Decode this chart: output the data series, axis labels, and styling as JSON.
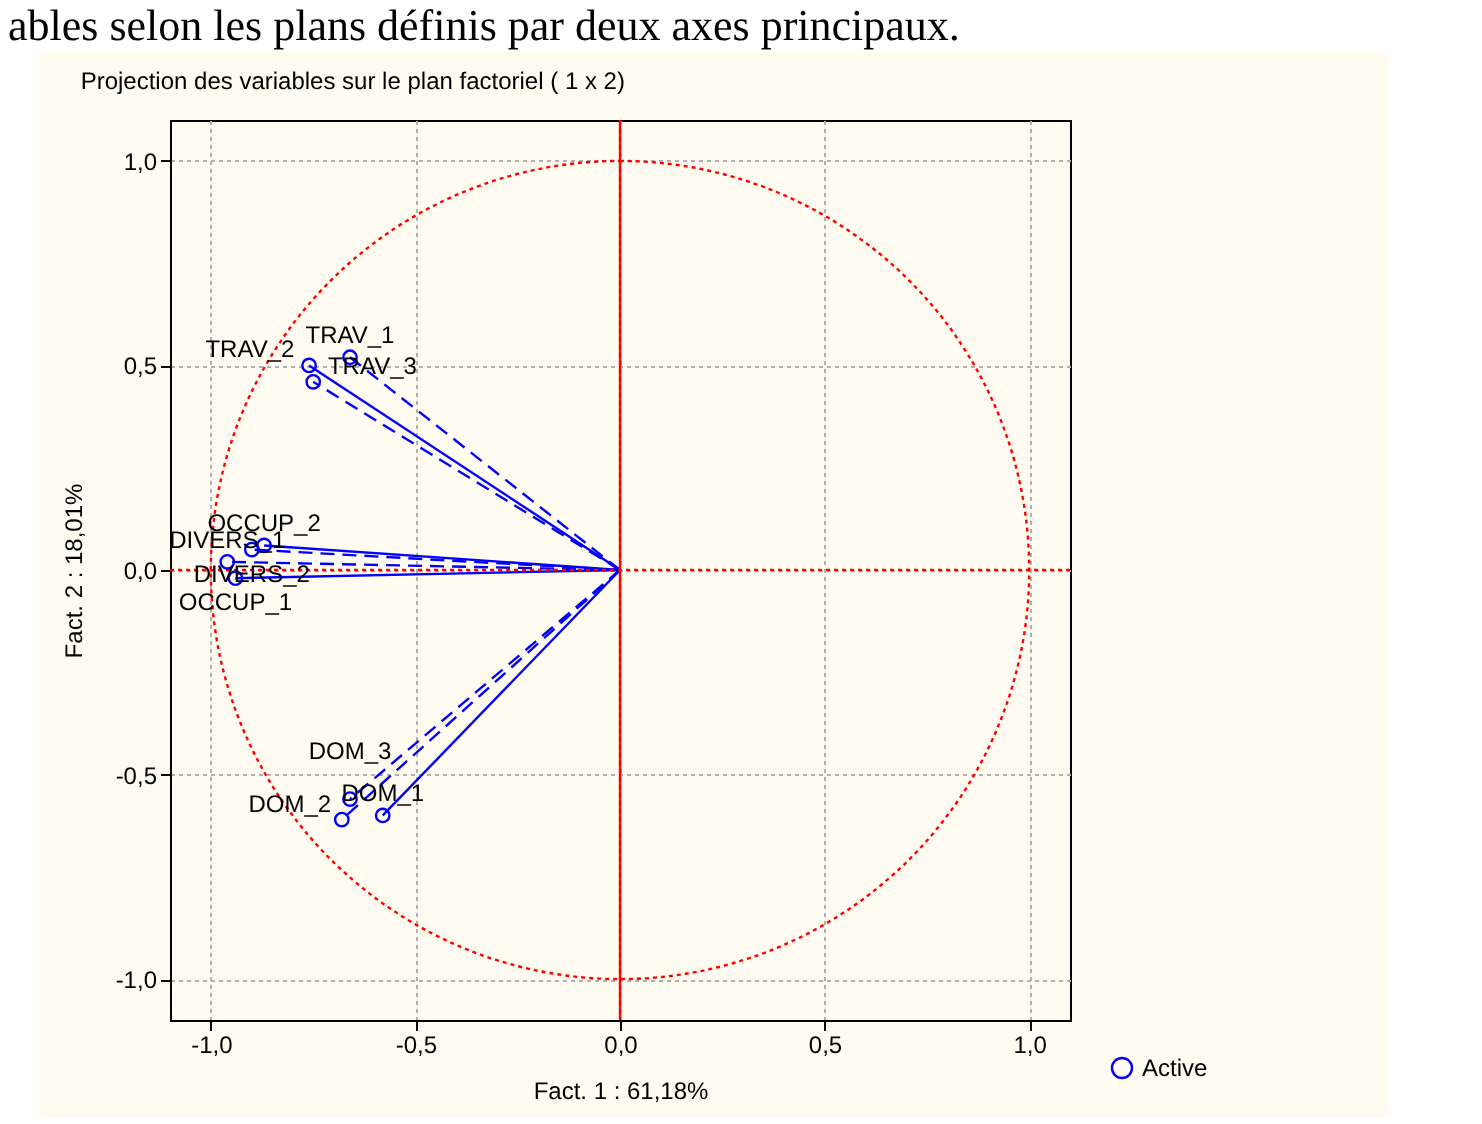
{
  "chart_data": {
    "type": "scatter",
    "title": "Projection des variables sur le plan factoriel (  1 x  2)",
    "xlabel": "Fact. 1  : 61,18%",
    "ylabel": "Fact. 2  : 18,01%",
    "xlim": [
      -1.1,
      1.1
    ],
    "ylim": [
      -1.1,
      1.1
    ],
    "xticks": [
      {
        "value": -1,
        "label": "-1,0"
      },
      {
        "value": -0.5,
        "label": "-0,5"
      },
      {
        "value": 0,
        "label": "0,0"
      },
      {
        "value": 0.5,
        "label": "0,5"
      },
      {
        "value": 1,
        "label": "1,0"
      }
    ],
    "yticks": [
      {
        "value": -1,
        "label": "-1,0"
      },
      {
        "value": -0.5,
        "label": "-0,5"
      },
      {
        "value": 0,
        "label": "0,0"
      },
      {
        "value": 0.5,
        "label": "0,5"
      },
      {
        "value": 1,
        "label": "1,0"
      }
    ],
    "grid": true,
    "legend": "bottom right",
    "ref_lines": [
      {
        "axis": "x",
        "value": 0,
        "color": "#ff0000",
        "line_style": "solid"
      },
      {
        "axis": "y",
        "value": 0,
        "color": "#ff0000",
        "line_style": "dotted"
      }
    ],
    "series": [
      {
        "type": "line",
        "color": "#0000ff",
        "line_style": "dashed",
        "x": [
          0,
          -0.66
        ],
        "values": [
          0,
          0.52
        ]
      },
      {
        "type": "line",
        "color": "#0000ff",
        "line_style": "solid",
        "x": [
          0,
          -0.76
        ],
        "values": [
          0,
          0.5
        ]
      },
      {
        "type": "line",
        "color": "#0000ff",
        "line_style": "dashed",
        "x": [
          0,
          -0.75
        ],
        "values": [
          0,
          0.46
        ]
      },
      {
        "type": "line",
        "color": "#0000ff",
        "line_style": "solid",
        "x": [
          0,
          -0.87
        ],
        "values": [
          0,
          0.06
        ]
      },
      {
        "type": "line",
        "color": "#0000ff",
        "line_style": "dashed",
        "x": [
          0,
          -0.9
        ],
        "values": [
          0,
          0.05
        ]
      },
      {
        "type": "line",
        "color": "#0000ff",
        "line_style": "dashed",
        "x": [
          0,
          -0.96
        ],
        "values": [
          0,
          0.02
        ]
      },
      {
        "type": "line",
        "color": "#0000ff",
        "line_style": "solid",
        "x": [
          0,
          -0.94
        ],
        "values": [
          0,
          -0.02
        ]
      },
      {
        "type": "line",
        "color": "#0000ff",
        "line_style": "solid",
        "x": [
          0,
          -0.58
        ],
        "values": [
          0,
          -0.6
        ]
      },
      {
        "type": "line",
        "color": "#0000ff",
        "line_style": "dashed",
        "x": [
          0,
          -0.68
        ],
        "values": [
          0,
          -0.61
        ]
      },
      {
        "type": "line",
        "color": "#0000ff",
        "line_style": "dashed",
        "x": [
          0,
          -0.66
        ],
        "values": [
          0,
          -0.56
        ]
      },
      {
        "name": "Active",
        "marker": "circle",
        "color": "#0000ff",
        "x": [
          -0.66,
          -0.76,
          -0.75,
          -0.87,
          -0.9,
          -0.96,
          -0.94,
          -0.58,
          -0.68,
          -0.66
        ],
        "values": [
          0.52,
          0.5,
          0.46,
          0.06,
          0.05,
          0.02,
          -0.02,
          -0.6,
          -0.61,
          -0.56
        ]
      }
    ],
    "annotations": [
      "ables selon les plans définis par deux axes principaux.",
      {
        "text": "TRAV_1",
        "x": -0.66,
        "y": 0.52
      },
      {
        "text": "TRAV_2",
        "x": -0.76,
        "y": 0.5
      },
      {
        "text": "TRAV_3",
        "x": -0.75,
        "y": 0.46
      },
      {
        "text": "OCCUP_2",
        "x": -0.87,
        "y": 0.06
      },
      {
        "text": "DIVERS_2",
        "x": -0.9,
        "y": 0.05
      },
      {
        "text": "DIVERS_1",
        "x": -0.96,
        "y": 0.02
      },
      {
        "text": "OCCUP_1",
        "x": -0.94,
        "y": -0.02
      },
      {
        "text": "DOM_1",
        "x": -0.58,
        "y": -0.6
      },
      {
        "text": "DOM_2",
        "x": -0.68,
        "y": -0.61
      },
      {
        "text": "DOM_3",
        "x": -0.66,
        "y": -0.56
      }
    ]
  }
}
